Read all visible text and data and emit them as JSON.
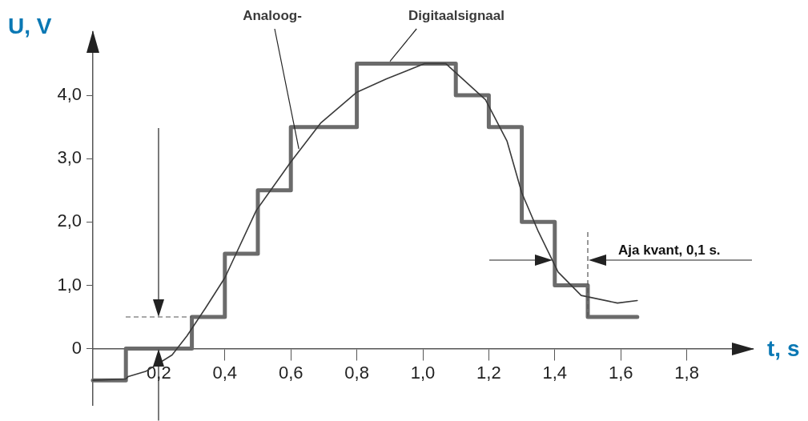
{
  "chart_data": {
    "type": "line",
    "xlabel": "t, s",
    "ylabel": "U, V",
    "xlim": [
      0,
      2.0
    ],
    "ylim": [
      -0.9,
      5.0
    ],
    "xticks": [
      {
        "value": 0.2,
        "label": "0,2"
      },
      {
        "value": 0.4,
        "label": "0,4"
      },
      {
        "value": 0.6,
        "label": "0,6"
      },
      {
        "value": 0.8,
        "label": "0,8"
      },
      {
        "value": 1.0,
        "label": "1,0"
      },
      {
        "value": 1.2,
        "label": "1,2"
      },
      {
        "value": 1.4,
        "label": "1,4"
      },
      {
        "value": 1.6,
        "label": "1,6"
      },
      {
        "value": 1.8,
        "label": "1,8"
      }
    ],
    "yticks": [
      0,
      {
        "value": 1,
        "label": "1,0"
      },
      {
        "value": 2,
        "label": "2,0"
      },
      {
        "value": 3,
        "label": "3,0"
      },
      {
        "value": 4,
        "label": "4,0"
      }
    ],
    "grid": false,
    "legend": false,
    "marker": "none",
    "series": [
      {
        "name": "Analoog-",
        "type": "line",
        "color": "#3a3a3a",
        "x": [
          0,
          0.1,
          0.107,
          0.16,
          0.24,
          0.285,
          0.34,
          0.4,
          0.495,
          0.6,
          0.69,
          0.8,
          0.89,
          1.005,
          1.07,
          1.19,
          1.255,
          1.3,
          1.35,
          1.41,
          1.48,
          1.59,
          1.65
        ],
        "values": [
          -0.5,
          -0.48,
          -0.44,
          -0.36,
          -0.1,
          0.2,
          0.63,
          1.12,
          2.18,
          2.95,
          3.56,
          4.05,
          4.26,
          4.5,
          4.5,
          3.93,
          3.28,
          2.46,
          1.85,
          1.21,
          0.84,
          0.72,
          0.76
        ]
      },
      {
        "name": "Digitaalsignaal",
        "type": "step",
        "color": "#6b6b6b",
        "x": [
          0,
          0.1,
          0.3,
          0.4,
          0.5,
          0.6,
          0.8,
          1.1,
          1.2,
          1.3,
          1.4,
          1.5,
          1.65
        ],
        "values": [
          -0.5,
          0,
          0.5,
          1.5,
          2.5,
          3.5,
          4.5,
          4.0,
          3.5,
          2.0,
          1.0,
          0.5,
          0.5
        ]
      }
    ],
    "annotations": [
      "Aja kvant, 0,1 s."
    ]
  }
}
